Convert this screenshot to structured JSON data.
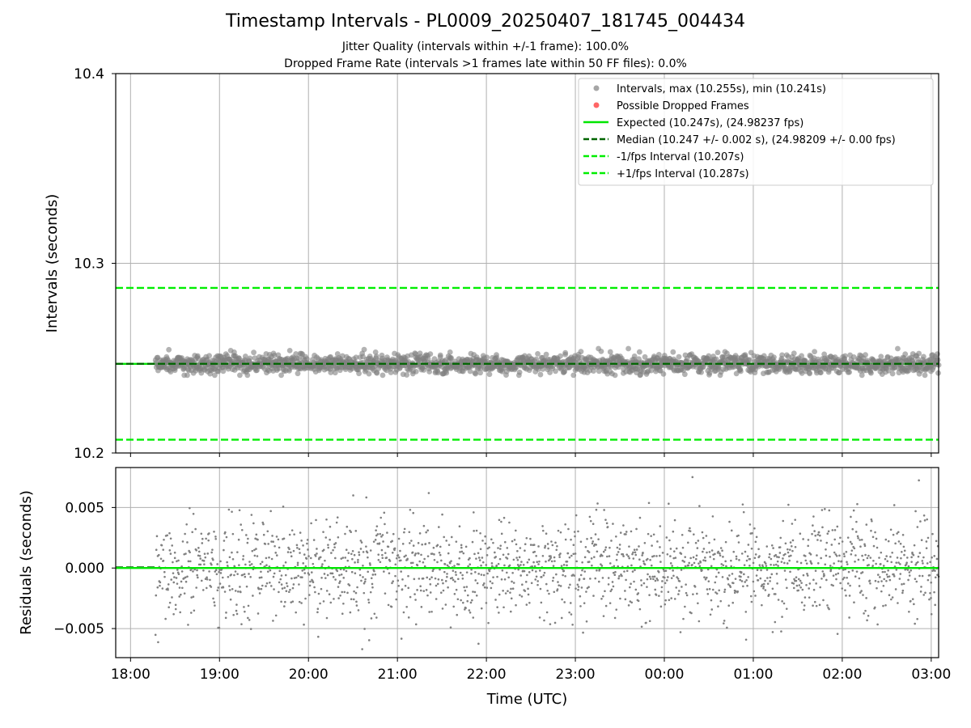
{
  "title": "Timestamp Intervals - PL0009_20250407_181745_004434",
  "subtitle_1": "Jitter Quality (intervals within +/-1 frame): 100.0%",
  "subtitle_2": "Dropped Frame Rate (intervals >1 frames late within 50 FF files): 0.0%",
  "colors": {
    "points": "#808080",
    "dropped": "#ff4d4d",
    "expected": "#00e600",
    "median": "#006400",
    "fps_band": "#00ee00",
    "grid": "#b0b0b0"
  },
  "chart_data": [
    {
      "type": "scatter",
      "panel": "top",
      "ylabel": "Intervals (seconds)",
      "xlim": [
        "17:50",
        "03:05"
      ],
      "ylim": [
        10.2,
        10.4
      ],
      "yticks": [
        "10.2",
        "10.3",
        "10.4"
      ],
      "xticks": [
        "18:00",
        "19:00",
        "20:00",
        "21:00",
        "22:00",
        "23:00",
        "00:00",
        "01:00",
        "02:00",
        "03:00"
      ],
      "grid": true,
      "x_range_of_points": [
        "18:17",
        "03:05"
      ],
      "max": 10.255,
      "min": 10.241,
      "expected": 10.247,
      "median": 10.247,
      "minus_fps": 10.207,
      "plus_fps": 10.287,
      "legend_position": "top-right",
      "legend": [
        {
          "label": "Intervals, max (10.255s), min (10.241s)",
          "kind": "marker",
          "color": "#a6a6a6"
        },
        {
          "label": "Possible Dropped Frames",
          "kind": "marker",
          "color": "#ff6666"
        },
        {
          "label": "Expected (10.247s), (24.98237 fps)",
          "kind": "solid",
          "color": "#00e600"
        },
        {
          "label": "Median (10.247 +/- 0.002 s), (24.98209 +/- 0.00 fps)",
          "kind": "dash",
          "color": "#006400"
        },
        {
          "label": "-1/fps Interval (10.207s)",
          "kind": "dash",
          "color": "#00ee00"
        },
        {
          "label": "+1/fps Interval (10.287s)",
          "kind": "dash",
          "color": "#00ee00"
        }
      ]
    },
    {
      "type": "scatter",
      "panel": "bottom",
      "ylabel": "Residuals (seconds)",
      "xlabel": "Time (UTC)",
      "xlim": [
        "17:50",
        "03:05"
      ],
      "ylim": [
        -0.0074,
        0.0083
      ],
      "yticks": [
        "−0.005",
        "0.000",
        "0.005"
      ],
      "ytick_values": [
        -0.005,
        0.0,
        0.005
      ],
      "xticks": [
        "18:00",
        "19:00",
        "20:00",
        "21:00",
        "22:00",
        "23:00",
        "00:00",
        "01:00",
        "02:00",
        "03:00"
      ],
      "grid": true,
      "residual_std": 0.002,
      "residual_max": 0.0076,
      "residual_min": -0.0067
    }
  ]
}
